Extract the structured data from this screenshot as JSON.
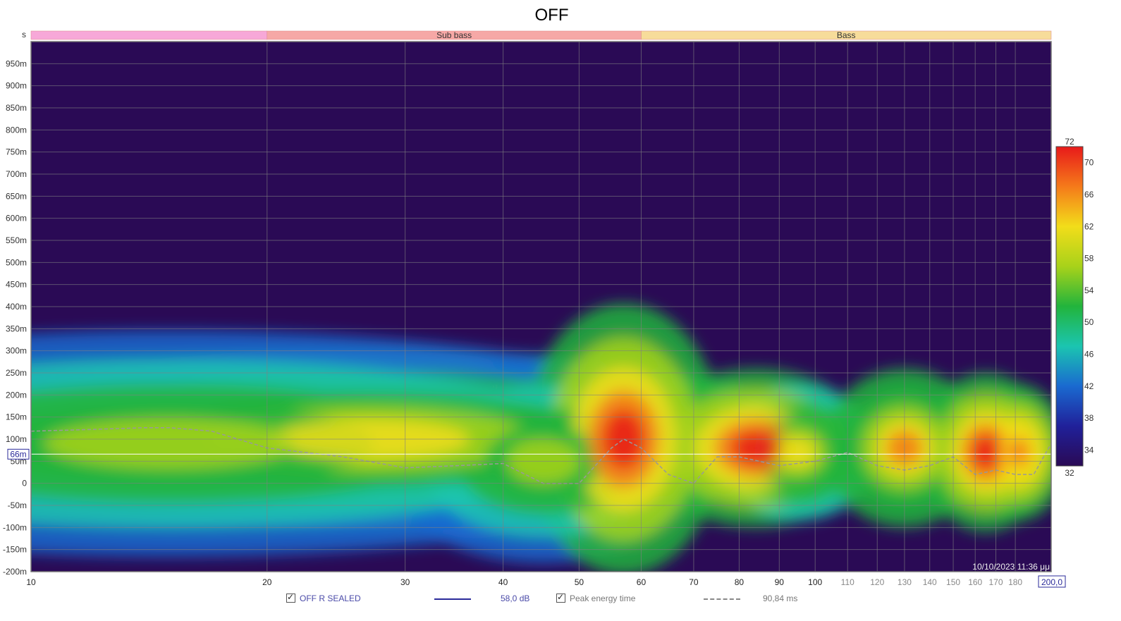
{
  "chart_data": {
    "type": "heatmap",
    "title": "OFF",
    "y_unit_label": "s",
    "x_axis": {
      "scale": "log",
      "range": [
        10,
        200
      ],
      "major_ticks": [
        "10",
        "20",
        "30",
        "40",
        "50",
        "60",
        "70",
        "80",
        "90",
        "100"
      ],
      "minor_ticks": [
        "110",
        "120",
        "130",
        "140",
        "150",
        "160",
        "170",
        "180"
      ],
      "end_label": "200,0"
    },
    "y_axis": {
      "range": [
        -0.2,
        1.0
      ],
      "ticks": [
        {
          "value": 0.95,
          "label": "950m"
        },
        {
          "value": 0.9,
          "label": "900m"
        },
        {
          "value": 0.85,
          "label": "850m"
        },
        {
          "value": 0.8,
          "label": "800m"
        },
        {
          "value": 0.75,
          "label": "750m"
        },
        {
          "value": 0.7,
          "label": "700m"
        },
        {
          "value": 0.65,
          "label": "650m"
        },
        {
          "value": 0.6,
          "label": "600m"
        },
        {
          "value": 0.55,
          "label": "550m"
        },
        {
          "value": 0.5,
          "label": "500m"
        },
        {
          "value": 0.45,
          "label": "450m"
        },
        {
          "value": 0.4,
          "label": "400m"
        },
        {
          "value": 0.35,
          "label": "350m"
        },
        {
          "value": 0.3,
          "label": "300m"
        },
        {
          "value": 0.25,
          "label": "250m"
        },
        {
          "value": 0.2,
          "label": "200m"
        },
        {
          "value": 0.15,
          "label": "150m"
        },
        {
          "value": 0.1,
          "label": "100m"
        },
        {
          "value": 0.05,
          "label": "50m"
        },
        {
          "value": 0,
          "label": "0"
        },
        {
          "value": -0.05,
          "label": "-50m"
        },
        {
          "value": -0.1,
          "label": "-100m"
        },
        {
          "value": -0.15,
          "label": "-150m"
        },
        {
          "value": -0.2,
          "label": "-200m"
        }
      ],
      "cursor": {
        "value": 0.066,
        "label": "66m"
      }
    },
    "bands": [
      {
        "name": "",
        "from": 10,
        "to": 20,
        "color": "#f7a8d8"
      },
      {
        "name": "Sub bass",
        "from": 20,
        "to": 60,
        "color": "#f6a8a6"
      },
      {
        "name": "Bass",
        "from": 60,
        "to": 200,
        "color": "#f7dc9a"
      }
    ],
    "color_scale": {
      "min": 32,
      "max": 72,
      "tick_labels": [
        70,
        66,
        62,
        58,
        54,
        50,
        46,
        42,
        38,
        34
      ],
      "stops": [
        "#2a0a55",
        "#20209a",
        "#1a6ad0",
        "#1bc5b0",
        "#22b43c",
        "#a8d21a",
        "#f2dd1a",
        "#f57a1a",
        "#e81a1a"
      ]
    },
    "hotspots": [
      {
        "f": 27,
        "t": 0.1,
        "level": 62,
        "spread_f": 0.28,
        "spread_t": 0.08
      },
      {
        "f": 15,
        "t": 0.09,
        "level": 58,
        "spread_f": 0.35,
        "spread_t": 0.1
      },
      {
        "f": 45,
        "t": 0.05,
        "level": 58,
        "spread_f": 0.1,
        "spread_t": 0.09
      },
      {
        "f": 57,
        "t": 0.1,
        "level": 70,
        "spread_f": 0.06,
        "spread_t": 0.12
      },
      {
        "f": 84,
        "t": 0.08,
        "level": 70,
        "spread_f": 0.07,
        "spread_t": 0.07
      },
      {
        "f": 95,
        "t": 0.07,
        "level": 62,
        "spread_f": 0.05,
        "spread_t": 0.06
      },
      {
        "f": 130,
        "t": 0.08,
        "level": 66,
        "spread_f": 0.05,
        "spread_t": 0.07
      },
      {
        "f": 165,
        "t": 0.07,
        "level": 70,
        "spread_f": 0.04,
        "spread_t": 0.07
      },
      {
        "f": 182,
        "t": 0.07,
        "level": 68,
        "spread_f": 0.03,
        "spread_t": 0.06
      }
    ],
    "peak_energy_time": {
      "x": [
        10,
        12,
        14,
        15,
        17,
        20,
        25,
        30,
        35,
        40,
        45,
        50,
        55,
        57,
        60,
        65,
        70,
        75,
        80,
        90,
        100,
        110,
        120,
        130,
        140,
        150,
        160,
        170,
        180,
        190,
        200
      ],
      "y": [
        0.118,
        0.122,
        0.126,
        0.126,
        0.118,
        0.08,
        0.06,
        0.035,
        0.04,
        0.045,
        0.0,
        0.0,
        0.08,
        0.1,
        0.08,
        0.02,
        0.0,
        0.06,
        0.06,
        0.04,
        0.05,
        0.07,
        0.04,
        0.03,
        0.04,
        0.06,
        0.02,
        0.03,
        0.02,
        0.02,
        0.09
      ]
    },
    "timestamp": "10/10/2023 11:36 μμ",
    "series": [
      {
        "name": "OFF R SEALED",
        "color": "#2a2a9a",
        "value_label": "58,0 dB",
        "checked": true
      },
      {
        "name": "Peak energy time",
        "color": "#888888",
        "value_label": "90,84 ms",
        "checked": true
      }
    ]
  }
}
